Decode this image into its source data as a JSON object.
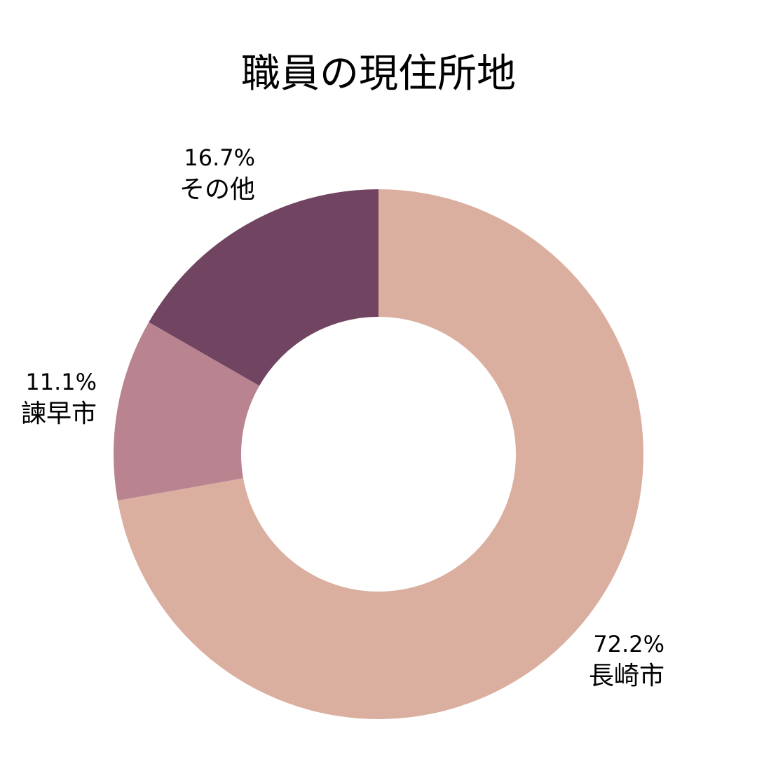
{
  "chart_data": {
    "type": "pie",
    "title": "職員の現住所地",
    "categories": [
      "長崎市",
      "諫早市",
      "その他"
    ],
    "values": [
      72.2,
      11.1,
      16.7
    ],
    "value_labels": [
      "72.2%",
      "11.1%",
      "16.7%"
    ],
    "colors": [
      "#dbaf9f",
      "#b98490",
      "#714562"
    ],
    "donut": true,
    "start_angle_deg": 0,
    "direction": "clockwise",
    "legend": "none"
  }
}
